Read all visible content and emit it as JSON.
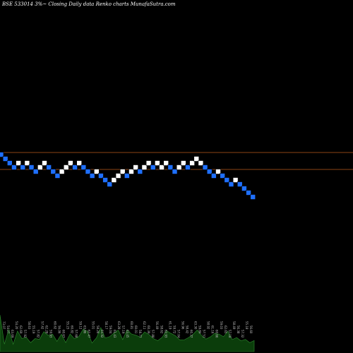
{
  "chart_data": {
    "type": "renko",
    "title": "BSE 533014  3%~  Closing Daily data  Renko  charts MunafaSutra.com",
    "colors": {
      "background": "#000000",
      "up_brick": "#ffffff",
      "down_brick": "#1e6fff",
      "level_line": "#8b4513",
      "volume_fill": "#0b3d0b",
      "volume_line": "#2e8b2e"
    },
    "levels": [
      216,
      240
    ],
    "bricks": [
      {
        "dir": "down",
        "level": 219
      },
      {
        "dir": "down",
        "level": 225
      },
      {
        "dir": "down",
        "level": 231
      },
      {
        "dir": "down",
        "level": 237
      },
      {
        "dir": "up",
        "level": 231
      },
      {
        "dir": "down",
        "level": 237
      },
      {
        "dir": "up",
        "level": 231
      },
      {
        "dir": "down",
        "level": 237
      },
      {
        "dir": "down",
        "level": 243
      },
      {
        "dir": "up",
        "level": 237
      },
      {
        "dir": "up",
        "level": 231
      },
      {
        "dir": "down",
        "level": 237
      },
      {
        "dir": "down",
        "level": 243
      },
      {
        "dir": "down",
        "level": 249
      },
      {
        "dir": "up",
        "level": 243
      },
      {
        "dir": "up",
        "level": 237
      },
      {
        "dir": "up",
        "level": 231
      },
      {
        "dir": "down",
        "level": 237
      },
      {
        "dir": "up",
        "level": 231
      },
      {
        "dir": "down",
        "level": 237
      },
      {
        "dir": "down",
        "level": 243
      },
      {
        "dir": "down",
        "level": 249
      },
      {
        "dir": "up",
        "level": 243
      },
      {
        "dir": "down",
        "level": 249
      },
      {
        "dir": "down",
        "level": 255
      },
      {
        "dir": "down",
        "level": 261
      },
      {
        "dir": "up",
        "level": 255
      },
      {
        "dir": "up",
        "level": 249
      },
      {
        "dir": "up",
        "level": 243
      },
      {
        "dir": "down",
        "level": 249
      },
      {
        "dir": "up",
        "level": 243
      },
      {
        "dir": "up",
        "level": 237
      },
      {
        "dir": "down",
        "level": 243
      },
      {
        "dir": "up",
        "level": 237
      },
      {
        "dir": "up",
        "level": 231
      },
      {
        "dir": "down",
        "level": 237
      },
      {
        "dir": "up",
        "level": 231
      },
      {
        "dir": "up",
        "level": 237
      },
      {
        "dir": "up",
        "level": 231
      },
      {
        "dir": "down",
        "level": 237
      },
      {
        "dir": "down",
        "level": 243
      },
      {
        "dir": "up",
        "level": 237
      },
      {
        "dir": "up",
        "level": 231
      },
      {
        "dir": "down",
        "level": 237
      },
      {
        "dir": "up",
        "level": 231
      },
      {
        "dir": "up",
        "level": 225
      },
      {
        "dir": "up",
        "level": 231
      },
      {
        "dir": "down",
        "level": 237
      },
      {
        "dir": "down",
        "level": 243
      },
      {
        "dir": "down",
        "level": 249
      },
      {
        "dir": "up",
        "level": 243
      },
      {
        "dir": "down",
        "level": 249
      },
      {
        "dir": "down",
        "level": 255
      },
      {
        "dir": "down",
        "level": 261
      },
      {
        "dir": "up",
        "level": 255
      },
      {
        "dir": "down",
        "level": 261
      },
      {
        "dir": "down",
        "level": 267
      },
      {
        "dir": "down",
        "level": 273
      },
      {
        "dir": "down",
        "level": 279
      }
    ],
    "volume_labels": [
      "73.07",
      "54.27",
      "63.69",
      "54.20",
      "62.69",
      "57.92",
      "58.63",
      "55.19",
      "57.82",
      "57.42",
      "62.28",
      "59.93",
      "60.62",
      "56.06",
      "60.67",
      "55.23",
      "60.82",
      "57.68",
      "59.12",
      "63.86",
      "62.47",
      "55.01",
      "58.26",
      "64.92",
      "58.17",
      "59.04",
      "61.43",
      "63.28",
      "57.19",
      "63.45",
      "60.81",
      "60.01",
      "58.77",
      "62.11",
      "60.39",
      "57.88",
      "56.49",
      "58.62",
      "62.93",
      "61.19",
      "59.72",
      "57.04",
      "56.96",
      "58.42",
      "60.37",
      "63.30",
      "59.84",
      "57.51",
      "58.92",
      "61.16",
      "60.66",
      "59.03",
      "62.65",
      "57.18",
      "58.49",
      "56.38",
      "57.32",
      "55.18",
      "56.60"
    ]
  }
}
